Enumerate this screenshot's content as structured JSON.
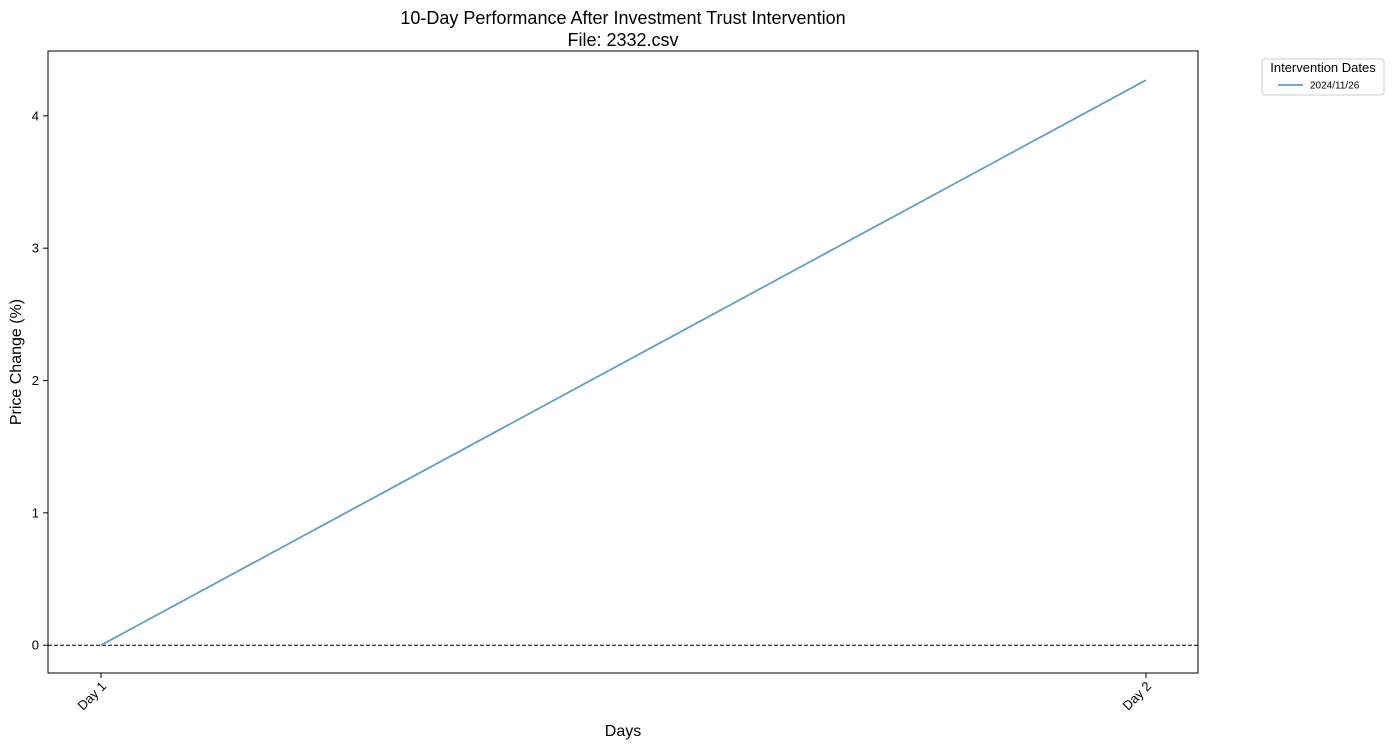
{
  "chart_data": {
    "type": "line",
    "title": "10-Day Performance After Investment Trust Intervention",
    "subtitle": "File: 2332.csv",
    "xlabel": "Days",
    "ylabel": "Price Change (%)",
    "categories": [
      "Day 1",
      "Day 2"
    ],
    "series": [
      {
        "name": "2024/11/26",
        "values": [
          0,
          4.27
        ],
        "color": "#5f9fc8"
      }
    ],
    "ylim": [
      -0.21,
      4.49
    ],
    "yticks": [
      0,
      1,
      2,
      3,
      4
    ],
    "reference_line": {
      "y": 0,
      "style": "dashed",
      "color": "#000000"
    },
    "legend": {
      "title": "Intervention Dates",
      "placement": "outside-top-right"
    },
    "grid": false
  }
}
